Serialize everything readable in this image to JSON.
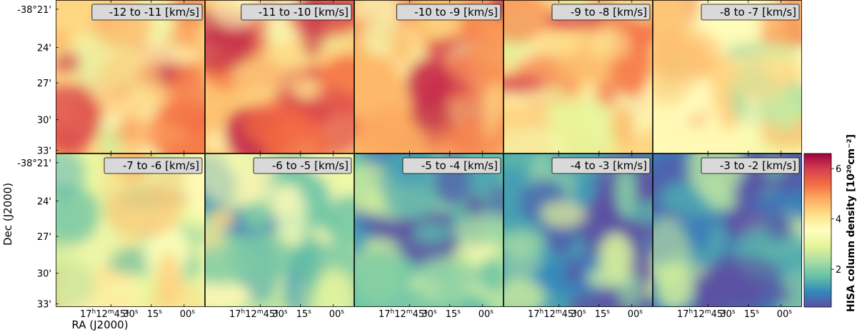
{
  "chart_data": {
    "type": "heatmap",
    "grid": {
      "rows": 2,
      "cols": 5
    },
    "panels": [
      {
        "label": "-12 to -11 [km/s]",
        "level": 0.62
      },
      {
        "label": "-11 to -10 [km/s]",
        "level": 0.66
      },
      {
        "label": "-10 to -9 [km/s]",
        "level": 0.68
      },
      {
        "label": "-9 to -8 [km/s]",
        "level": 0.62
      },
      {
        "label": "-8 to -7 [km/s]",
        "level": 0.52
      },
      {
        "label": "-7 to -6 [km/s]",
        "level": 0.42
      },
      {
        "label": "-6 to -5 [km/s]",
        "level": 0.33
      },
      {
        "label": "-5 to -4 [km/s]",
        "level": 0.2
      },
      {
        "label": "-4 to -3 [km/s]",
        "level": 0.14
      },
      {
        "label": "-3 to -2 [km/s]",
        "level": 0.08
      }
    ],
    "xlabel": "RA (J2000)",
    "ylabel": "Dec (J2000)",
    "yticks": [
      "-38°21'",
      "24'",
      "27'",
      "30'",
      "33'"
    ],
    "xticks": [
      {
        "h": "17",
        "m": "12",
        "s": "45"
      },
      {
        "s": "30"
      },
      {
        "s": "15"
      },
      {
        "s": "00"
      }
    ],
    "colorbar": {
      "label": "HISA column density",
      "unit": "[10²⁰cm⁻²]",
      "ticks": [
        2,
        4,
        6
      ],
      "range": [
        0.5,
        6.6
      ],
      "colormap": [
        "#5e4fa2",
        "#3288bd",
        "#66c2a5",
        "#abdda4",
        "#e6f598",
        "#ffffbf",
        "#fee08b",
        "#fdae61",
        "#f46d43",
        "#d53e4f",
        "#9e0142"
      ]
    }
  }
}
